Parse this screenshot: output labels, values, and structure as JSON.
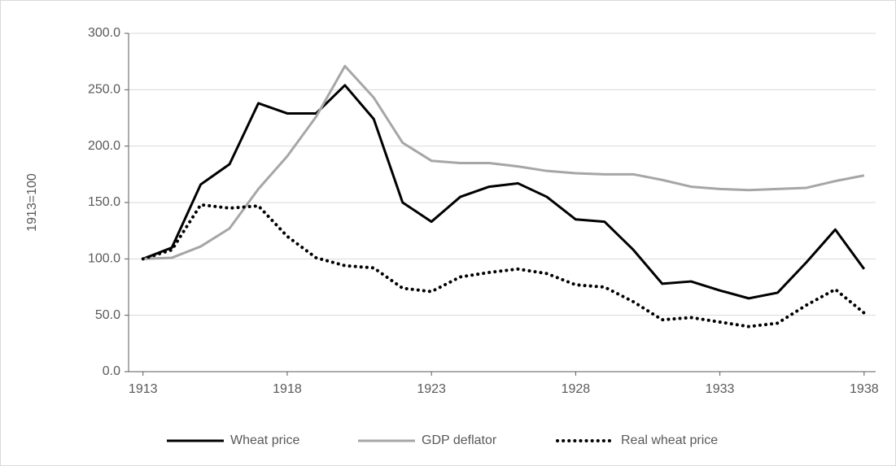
{
  "chart_data": {
    "type": "line",
    "y_label": "1913=100",
    "x": [
      1913,
      1914,
      1915,
      1916,
      1917,
      1918,
      1919,
      1920,
      1921,
      1922,
      1923,
      1924,
      1925,
      1926,
      1927,
      1928,
      1929,
      1930,
      1931,
      1932,
      1933,
      1934,
      1935,
      1936,
      1937,
      1938
    ],
    "series": [
      {
        "name": "Wheat price",
        "color": "#000000",
        "style": "solid",
        "values": [
          100,
          110,
          166,
          184,
          238,
          229,
          229,
          254,
          224,
          150,
          133,
          155,
          164,
          167,
          155,
          135,
          133,
          108,
          78,
          80,
          72,
          65,
          70,
          97,
          126,
          91
        ]
      },
      {
        "name": "GDP deflator",
        "color": "#a6a6a6",
        "style": "solid",
        "values": [
          100,
          101,
          111,
          127,
          162,
          191,
          226,
          271,
          243,
          203,
          187,
          185,
          185,
          182,
          178,
          176,
          175,
          175,
          170,
          164,
          162,
          161,
          162,
          163,
          169,
          174
        ]
      },
      {
        "name": "Real wheat price",
        "color": "#000000",
        "style": "dotted",
        "values": [
          100,
          108,
          148,
          145,
          147,
          120,
          101,
          94,
          92,
          74,
          71,
          84,
          88,
          91,
          87,
          77,
          75,
          62,
          46,
          48,
          44,
          40,
          43,
          59,
          73,
          52
        ]
      }
    ],
    "xlim": [
      1912.5,
      1938.4
    ],
    "xticks": [
      1913,
      1918,
      1923,
      1928,
      1933,
      1938
    ],
    "ylim": [
      0,
      300
    ],
    "yticks": [
      {
        "value": 0,
        "label": "0.0"
      },
      {
        "value": 50,
        "label": "50.0"
      },
      {
        "value": 100,
        "label": "100.0"
      },
      {
        "value": 150,
        "label": "150.0"
      },
      {
        "value": 200,
        "label": "200.0"
      },
      {
        "value": 250,
        "label": "250.0"
      },
      {
        "value": 300,
        "label": "300.0"
      }
    ],
    "grid": true,
    "legend": "bottom"
  }
}
